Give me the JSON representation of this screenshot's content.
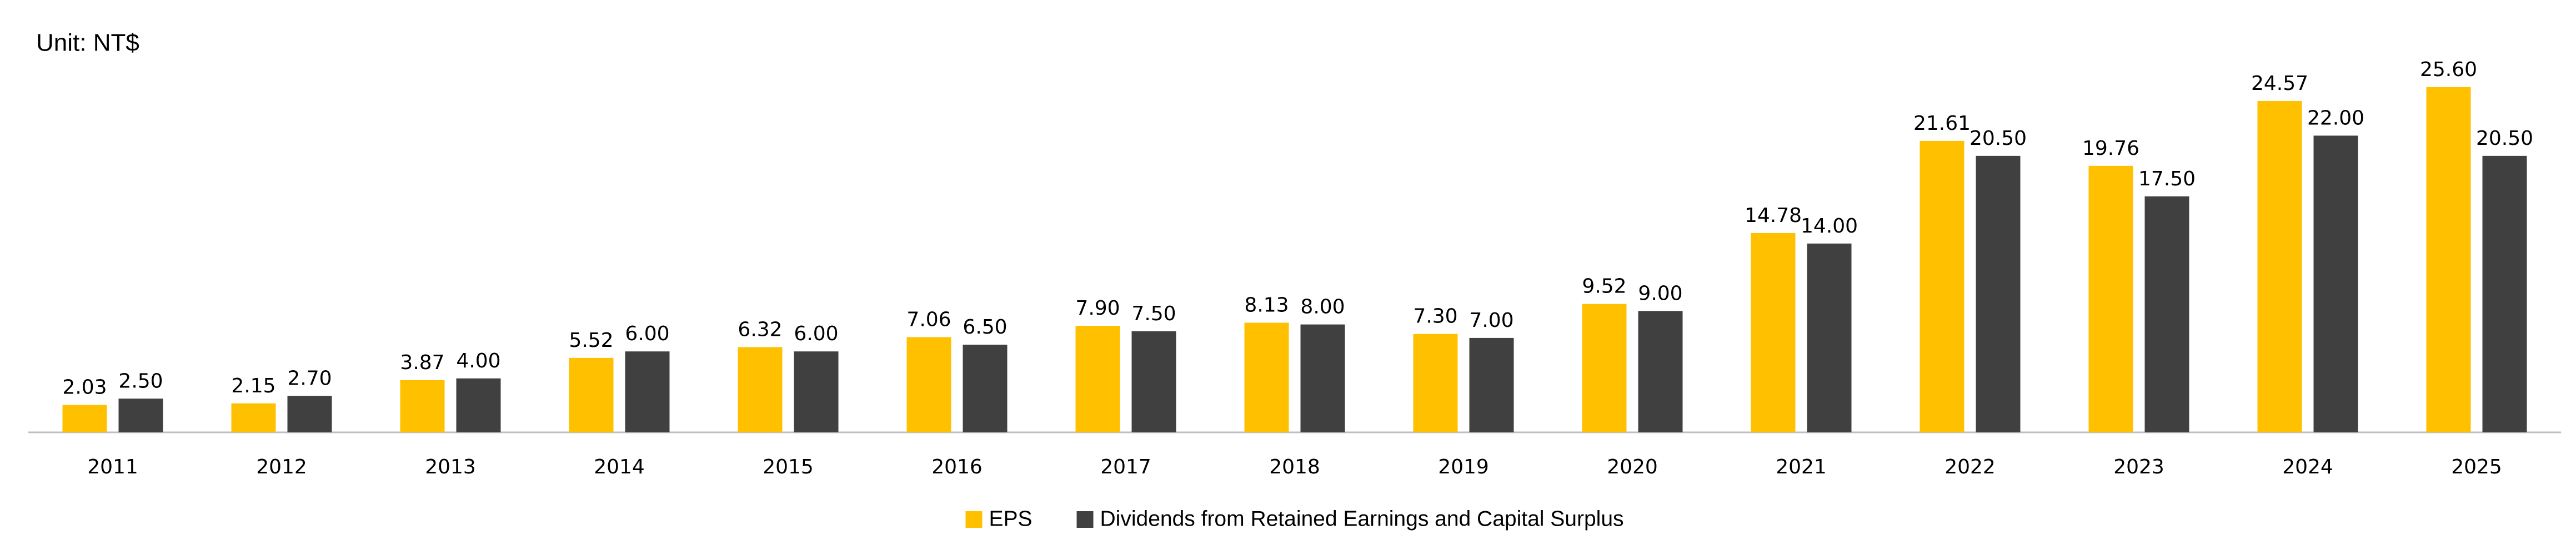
{
  "chart_data": {
    "type": "bar",
    "title": "Unit: NT$",
    "categories": [
      "2011",
      "2012",
      "2013",
      "2014",
      "2015",
      "2016",
      "2017",
      "2018",
      "2019",
      "2020",
      "2021",
      "2022",
      "2023",
      "2024",
      "2025"
    ],
    "series": [
      {
        "name": "EPS",
        "color": "#FFC000",
        "values": [
          2.03,
          2.15,
          3.87,
          5.52,
          6.32,
          7.06,
          7.9,
          8.13,
          7.3,
          9.52,
          14.78,
          21.61,
          19.76,
          24.57,
          25.6
        ],
        "value_labels": [
          "2.03",
          "2.15",
          "3.87",
          "5.52",
          "6.32",
          "7.06",
          "7.90",
          "8.13",
          "7.30",
          "9.52",
          "14.78",
          "21.61",
          "19.76",
          "24.57",
          "25.60"
        ]
      },
      {
        "name": "Dividends from Retained Earnings and Capital Surplus",
        "color": "#404040",
        "values": [
          2.5,
          2.7,
          4,
          6,
          6,
          6.5,
          7.5,
          8,
          7,
          9,
          14,
          20.5,
          17.5,
          22,
          20.5
        ],
        "value_labels": [
          "2.50",
          "2.70",
          "4.00",
          "6.00",
          "6.00",
          "6.50",
          "7.50",
          "8.00",
          "7.00",
          "9.00",
          "14.00",
          "20.50",
          "17.50",
          "22.00",
          "20.50"
        ]
      }
    ],
    "ylim": [
      0,
      30
    ],
    "legend": "bottom"
  }
}
